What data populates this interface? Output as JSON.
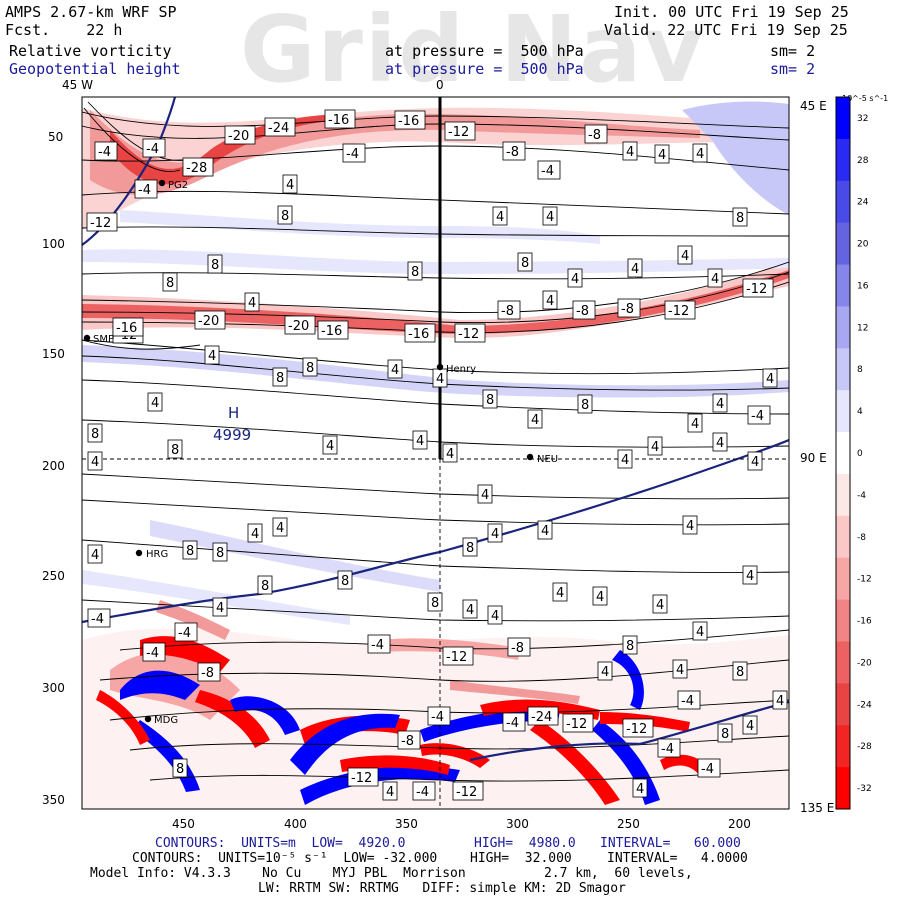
{
  "header": {
    "model": "AMPS 2.67-km WRF SP",
    "fcst": "Fcst.    22 h",
    "init": "Init. 00 UTC Fri 19 Sep 25",
    "valid": "Valid. 22 UTC Fri 19 Sep 25",
    "field1": "Relative vorticity",
    "field1_pressure": "at pressure =  500 hPa",
    "field1_sm": "sm= 2",
    "field2": "Geopotential height",
    "field2_pressure": "at pressure =  500 hPa",
    "field2_sm": "sm= 2",
    "watermark": "Grid Nav"
  },
  "axes": {
    "top_labels": [
      "45 W",
      "0"
    ],
    "right_labels": [
      "45 E",
      "90 E",
      "135 E"
    ],
    "left_ticks": [
      "50",
      "100",
      "150",
      "200",
      "250",
      "300",
      "350"
    ],
    "bottom_ticks": [
      "450",
      "400",
      "350",
      "300",
      "250",
      "200"
    ]
  },
  "colorbar": {
    "unit": "10^-5 s^-1",
    "labels": [
      "32",
      "28",
      "24",
      "20",
      "16",
      "12",
      "8",
      "4",
      "0",
      "-4",
      "-8",
      "-12",
      "-16",
      "-20",
      "-24",
      "-28",
      "-32"
    ],
    "colors": [
      "#0000ff",
      "#2a2af5",
      "#4a4ae8",
      "#6464e0",
      "#8585ea",
      "#a8a8f2",
      "#c8c8f8",
      "#e6e6fc",
      "#ffffff",
      "#fde8e8",
      "#fbc8c8",
      "#f7a6a6",
      "#f18484",
      "#ec6262",
      "#e84444",
      "#f22424",
      "#ff0000"
    ]
  },
  "stations": [
    {
      "name": "PG2"
    },
    {
      "name": "SMP"
    },
    {
      "name": "Henry"
    },
    {
      "name": "NEU"
    },
    {
      "name": "HRG"
    },
    {
      "name": "MDG"
    }
  ],
  "high_label": {
    "symbol": "H",
    "value": "4999"
  },
  "contour_labels": [
    "-4",
    "-8",
    "-12",
    "-16",
    "-20",
    "-24",
    "-28",
    "4",
    "8"
  ],
  "footer": {
    "line1_left": "CONTOURS:  UNITS=m  LOW=  4920.0",
    "line1_mid": "HIGH=  4980.0",
    "line1_right": "INTERVAL=   60.000",
    "line2_left": "CONTOURS:  UNITS=10⁻⁵ s⁻¹  LOW= -32.000",
    "line2_mid": "HIGH=  32.000",
    "line2_right": "INTERVAL=   4.0000",
    "line3": "Model Info: V4.3.3    No Cu    MYJ PBL  Morrison          2.7 km,  60 levels,",
    "line4": "LW: RRTM SW: RRTMG   DIFF: simple KM: 2D Smagor"
  },
  "colors": {
    "geopotential_line": "#1a237e",
    "header_blue": "#1a1a9a",
    "positive_vorticity": "#0000ff",
    "negative_vorticity": "#ff0000"
  }
}
